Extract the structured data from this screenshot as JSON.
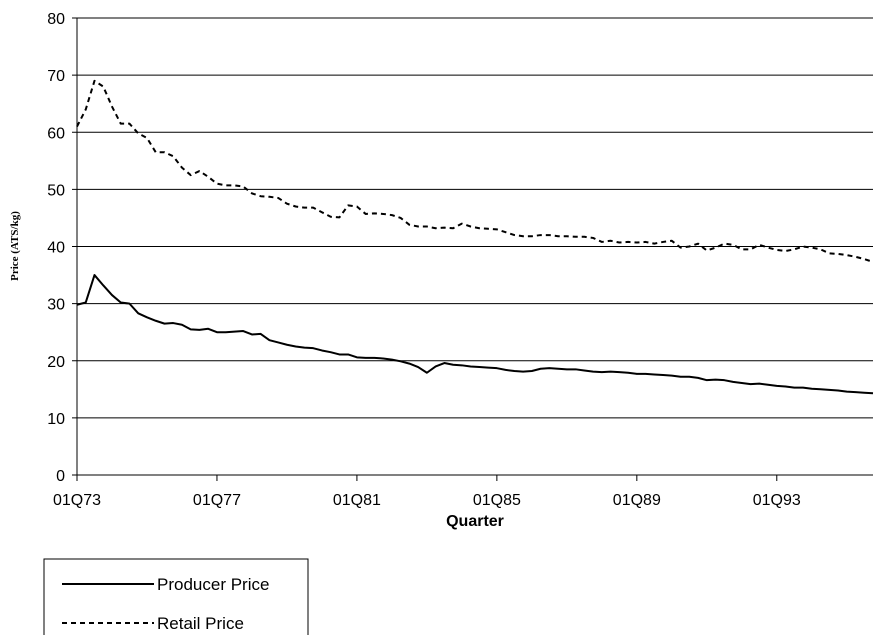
{
  "chart_data": {
    "type": "line",
    "xlabel": "Quarter",
    "ylabel": "Price (ATS/kg)",
    "ylim": [
      0,
      80
    ],
    "yticks": [
      "0",
      "10",
      "20",
      "30",
      "40",
      "50",
      "60",
      "70",
      "80"
    ],
    "xticks": [
      "01Q73",
      "01Q77",
      "01Q81",
      "01Q85",
      "01Q89",
      "01Q93"
    ],
    "x_range": [
      "01Q73",
      "04Q94"
    ],
    "grid": "horizontal",
    "legend_position": "bottom-left",
    "series": [
      {
        "name": "Producer Price",
        "color": "#000000",
        "style": "solid",
        "values": [
          29.8,
          30.2,
          35.0,
          33.2,
          31.5,
          30.2,
          30.0,
          28.3,
          27.6,
          27.0,
          26.5,
          26.6,
          26.3,
          25.5,
          25.4,
          25.6,
          25.0,
          25.0,
          25.1,
          25.2,
          24.6,
          24.7,
          23.6,
          23.2,
          22.8,
          22.5,
          22.3,
          22.2,
          21.8,
          21.5,
          21.1,
          21.1,
          20.6,
          20.5,
          20.5,
          20.4,
          20.2,
          19.9,
          19.5,
          18.9,
          17.9,
          19.0,
          19.6,
          19.3,
          19.2,
          19.0,
          18.9,
          18.8,
          18.7,
          18.4,
          18.2,
          18.1,
          18.2,
          18.6,
          18.7,
          18.6,
          18.5,
          18.5,
          18.3,
          18.1,
          18.0,
          18.1,
          18.0,
          17.9,
          17.7,
          17.7,
          17.6,
          17.5,
          17.4,
          17.2,
          17.2,
          17.0,
          16.6,
          16.7,
          16.6,
          16.3,
          16.1,
          15.9,
          16.0,
          15.8,
          15.6,
          15.5,
          15.3,
          15.3,
          15.1,
          15.0,
          14.9,
          14.8,
          14.6,
          14.5,
          14.4,
          14.3
        ]
      },
      {
        "name": "Retail Price",
        "color": "#000000",
        "style": "dashed",
        "values": [
          61.0,
          64.0,
          69.0,
          68.0,
          64.5,
          61.5,
          61.5,
          59.8,
          59.0,
          56.5,
          56.5,
          55.8,
          53.8,
          52.5,
          53.2,
          52.2,
          51.0,
          50.7,
          50.7,
          50.5,
          49.3,
          48.8,
          48.7,
          48.5,
          47.5,
          47.0,
          46.8,
          46.8,
          46.0,
          45.2,
          45.1,
          47.2,
          47.0,
          45.7,
          45.8,
          45.7,
          45.5,
          45.0,
          43.8,
          43.5,
          43.5,
          43.2,
          43.3,
          43.2,
          44.0,
          43.5,
          43.2,
          43.1,
          43.0,
          42.5,
          42.0,
          41.8,
          41.8,
          42.0,
          42.0,
          41.8,
          41.8,
          41.7,
          41.7,
          41.5,
          40.8,
          41.0,
          40.7,
          40.8,
          40.7,
          40.8,
          40.5,
          40.8,
          41.0,
          39.8,
          40.0,
          40.5,
          39.3,
          39.8,
          40.5,
          40.3,
          39.5,
          39.5,
          40.3,
          39.8,
          39.4,
          39.2,
          39.5,
          40.0,
          39.8,
          39.5,
          38.8,
          38.7,
          38.5,
          38.2,
          37.8,
          37.3
        ]
      }
    ]
  }
}
